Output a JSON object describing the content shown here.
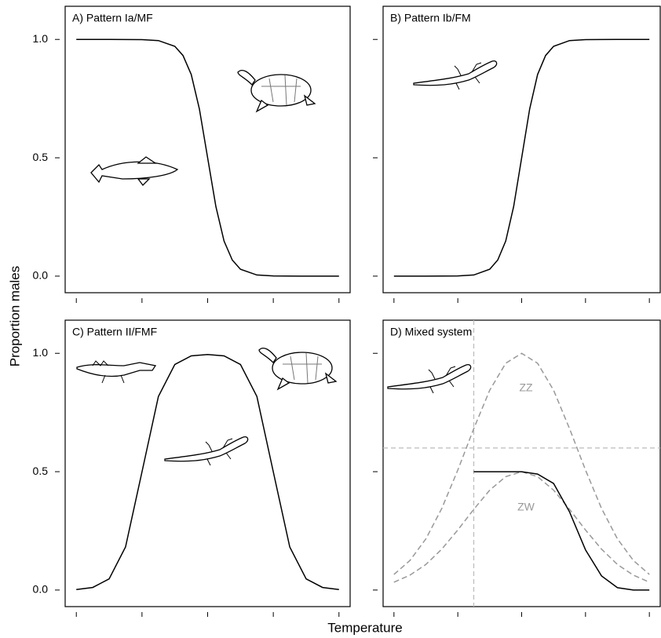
{
  "y_label": "Proportion males",
  "x_label": "Temperature",
  "chart_data": [
    {
      "type": "line",
      "title": "A) Pattern Ia/MF",
      "color": "#000000",
      "x": [
        0,
        0.5,
        1,
        1.25,
        1.5,
        1.625,
        1.75,
        1.875,
        2,
        2.125,
        2.25,
        2.375,
        2.5,
        2.75,
        3,
        3.5,
        4
      ],
      "values": [
        1,
        1,
        0.999,
        0.995,
        0.971,
        0.932,
        0.852,
        0.706,
        0.5,
        0.294,
        0.148,
        0.068,
        0.029,
        0.005,
        0.001,
        0,
        0
      ],
      "xlim": [
        -0.17,
        4.17
      ],
      "ylim": [
        -0.07,
        1.14
      ],
      "xticks": [
        0,
        1,
        2,
        3,
        4
      ],
      "yticks": [
        {
          "value": 0,
          "label": "0.0"
        },
        {
          "value": 0.5,
          "label": "0.5"
        },
        {
          "value": 1,
          "label": "1.0"
        }
      ]
    },
    {
      "type": "line",
      "title": "B) Pattern Ib/FM",
      "color": "#000000",
      "x": [
        0,
        0.5,
        1,
        1.25,
        1.5,
        1.625,
        1.75,
        1.875,
        2,
        2.125,
        2.25,
        2.375,
        2.5,
        2.75,
        3,
        3.5,
        4
      ],
      "values": [
        0,
        0,
        0.001,
        0.005,
        0.029,
        0.068,
        0.148,
        0.294,
        0.5,
        0.706,
        0.852,
        0.932,
        0.971,
        0.995,
        0.999,
        1,
        1
      ],
      "xlim": [
        -0.17,
        4.17
      ],
      "ylim": [
        -0.07,
        1.14
      ],
      "xticks": [
        0,
        1,
        2,
        3,
        4
      ],
      "yticks": [
        0,
        0.5,
        1
      ]
    },
    {
      "type": "line",
      "title": "C) Pattern II/FMF",
      "color": "#000000",
      "x": [
        0,
        0.25,
        0.5,
        0.75,
        1,
        1.25,
        1.5,
        1.75,
        2,
        2.25,
        2.5,
        2.75,
        3,
        3.25,
        3.5,
        3.75,
        4
      ],
      "values": [
        0.002,
        0.011,
        0.047,
        0.182,
        0.5,
        0.818,
        0.953,
        0.989,
        0.995,
        0.989,
        0.953,
        0.818,
        0.5,
        0.182,
        0.047,
        0.011,
        0.002
      ],
      "xlim": [
        -0.17,
        4.17
      ],
      "ylim": [
        -0.07,
        1.14
      ],
      "xticks": [
        0,
        1,
        2,
        3,
        4
      ],
      "yticks": [
        {
          "value": 0,
          "label": "0.0"
        },
        {
          "value": 0.5,
          "label": "0.5"
        },
        {
          "value": 1,
          "label": "1.0"
        }
      ]
    },
    {
      "type": "line",
      "title": "D) Mixed system",
      "series": [
        {
          "name": "ZZ",
          "color": "#999999",
          "dashed": true,
          "x": [
            0,
            0.25,
            0.5,
            0.75,
            1,
            1.25,
            1.5,
            1.75,
            2,
            2.25,
            2.5,
            2.75,
            3,
            3.25,
            3.5,
            3.75,
            4
          ],
          "values": [
            0.066,
            0.125,
            0.216,
            0.345,
            0.507,
            0.682,
            0.844,
            0.958,
            1,
            0.958,
            0.844,
            0.682,
            0.507,
            0.345,
            0.216,
            0.125,
            0.066
          ]
        },
        {
          "name": "ZW",
          "color": "#999999",
          "dashed": true,
          "x": [
            0,
            0.25,
            0.5,
            0.75,
            1,
            1.25,
            1.5,
            1.75,
            2,
            2.25,
            2.5,
            2.75,
            3,
            3.25,
            3.5,
            3.75,
            4
          ],
          "values": [
            0.033,
            0.063,
            0.108,
            0.173,
            0.254,
            0.341,
            0.422,
            0.479,
            0.5,
            0.479,
            0.422,
            0.341,
            0.254,
            0.173,
            0.108,
            0.063,
            0.033
          ]
        },
        {
          "color": "#000000",
          "x": [
            1.25,
            1.5,
            1.75,
            2,
            2.25,
            2.5,
            2.75,
            3,
            3.25,
            3.5,
            3.75,
            4
          ],
          "values": [
            0.5,
            0.5,
            0.5,
            0.5,
            0.49,
            0.45,
            0.33,
            0.17,
            0.06,
            0.01,
            0,
            0
          ]
        }
      ],
      "hline": 0.6,
      "vline": 1.25,
      "ref_color": "#bbbbbb",
      "xlim": [
        -0.17,
        4.17
      ],
      "ylim": [
        -0.07,
        1.14
      ],
      "xticks": [
        0,
        1,
        2,
        3,
        4
      ],
      "yticks": [
        0,
        0.5,
        1
      ]
    }
  ]
}
